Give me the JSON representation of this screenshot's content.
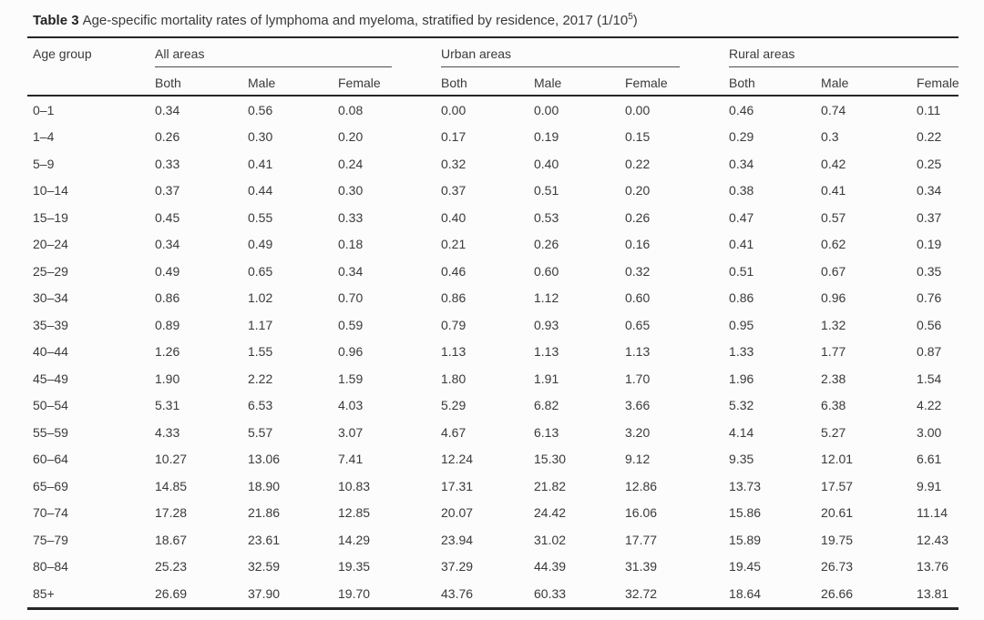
{
  "caption": {
    "label": "Table 3",
    "text": "Age-specific mortality rates of lymphoma and myeloma, stratified by residence, 2017 (1/10",
    "superscript": "5",
    "suffix": ")"
  },
  "table": {
    "age_group_header": "Age group",
    "groups": [
      {
        "label": "All areas"
      },
      {
        "label": "Urban areas"
      },
      {
        "label": "Rural areas"
      }
    ],
    "sub_headers": [
      "Both",
      "Male",
      "Female"
    ],
    "rows": [
      {
        "age": "0–1",
        "values": [
          "0.34",
          "0.56",
          "0.08",
          "0.00",
          "0.00",
          "0.00",
          "0.46",
          "0.74",
          "0.11"
        ]
      },
      {
        "age": "1–4",
        "values": [
          "0.26",
          "0.30",
          "0.20",
          "0.17",
          "0.19",
          "0.15",
          "0.29",
          "0.3",
          "0.22"
        ]
      },
      {
        "age": "5–9",
        "values": [
          "0.33",
          "0.41",
          "0.24",
          "0.32",
          "0.40",
          "0.22",
          "0.34",
          "0.42",
          "0.25"
        ]
      },
      {
        "age": "10–14",
        "values": [
          "0.37",
          "0.44",
          "0.30",
          "0.37",
          "0.51",
          "0.20",
          "0.38",
          "0.41",
          "0.34"
        ]
      },
      {
        "age": "15–19",
        "values": [
          "0.45",
          "0.55",
          "0.33",
          "0.40",
          "0.53",
          "0.26",
          "0.47",
          "0.57",
          "0.37"
        ]
      },
      {
        "age": "20–24",
        "values": [
          "0.34",
          "0.49",
          "0.18",
          "0.21",
          "0.26",
          "0.16",
          "0.41",
          "0.62",
          "0.19"
        ]
      },
      {
        "age": "25–29",
        "values": [
          "0.49",
          "0.65",
          "0.34",
          "0.46",
          "0.60",
          "0.32",
          "0.51",
          "0.67",
          "0.35"
        ]
      },
      {
        "age": "30–34",
        "values": [
          "0.86",
          "1.02",
          "0.70",
          "0.86",
          "1.12",
          "0.60",
          "0.86",
          "0.96",
          "0.76"
        ]
      },
      {
        "age": "35–39",
        "values": [
          "0.89",
          "1.17",
          "0.59",
          "0.79",
          "0.93",
          "0.65",
          "0.95",
          "1.32",
          "0.56"
        ]
      },
      {
        "age": "40–44",
        "values": [
          "1.26",
          "1.55",
          "0.96",
          "1.13",
          "1.13",
          "1.13",
          "1.33",
          "1.77",
          "0.87"
        ]
      },
      {
        "age": "45–49",
        "values": [
          "1.90",
          "2.22",
          "1.59",
          "1.80",
          "1.91",
          "1.70",
          "1.96",
          "2.38",
          "1.54"
        ]
      },
      {
        "age": "50–54",
        "values": [
          "5.31",
          "6.53",
          "4.03",
          "5.29",
          "6.82",
          "3.66",
          "5.32",
          "6.38",
          "4.22"
        ]
      },
      {
        "age": "55–59",
        "values": [
          "4.33",
          "5.57",
          "3.07",
          "4.67",
          "6.13",
          "3.20",
          "4.14",
          "5.27",
          "3.00"
        ]
      },
      {
        "age": "60–64",
        "values": [
          "10.27",
          "13.06",
          "7.41",
          "12.24",
          "15.30",
          "9.12",
          "9.35",
          "12.01",
          "6.61"
        ]
      },
      {
        "age": "65–69",
        "values": [
          "14.85",
          "18.90",
          "10.83",
          "17.31",
          "21.82",
          "12.86",
          "13.73",
          "17.57",
          "9.91"
        ]
      },
      {
        "age": "70–74",
        "values": [
          "17.28",
          "21.86",
          "12.85",
          "20.07",
          "24.42",
          "16.06",
          "15.86",
          "20.61",
          "11.14"
        ]
      },
      {
        "age": "75–79",
        "values": [
          "18.67",
          "23.61",
          "14.29",
          "23.94",
          "31.02",
          "17.77",
          "15.89",
          "19.75",
          "12.43"
        ]
      },
      {
        "age": "80–84",
        "values": [
          "25.23",
          "32.59",
          "19.35",
          "37.29",
          "44.39",
          "31.39",
          "19.45",
          "26.73",
          "13.76"
        ]
      },
      {
        "age": "85+",
        "values": [
          "26.69",
          "37.90",
          "19.70",
          "43.76",
          "60.33",
          "32.72",
          "18.64",
          "26.66",
          "13.81"
        ]
      }
    ]
  }
}
